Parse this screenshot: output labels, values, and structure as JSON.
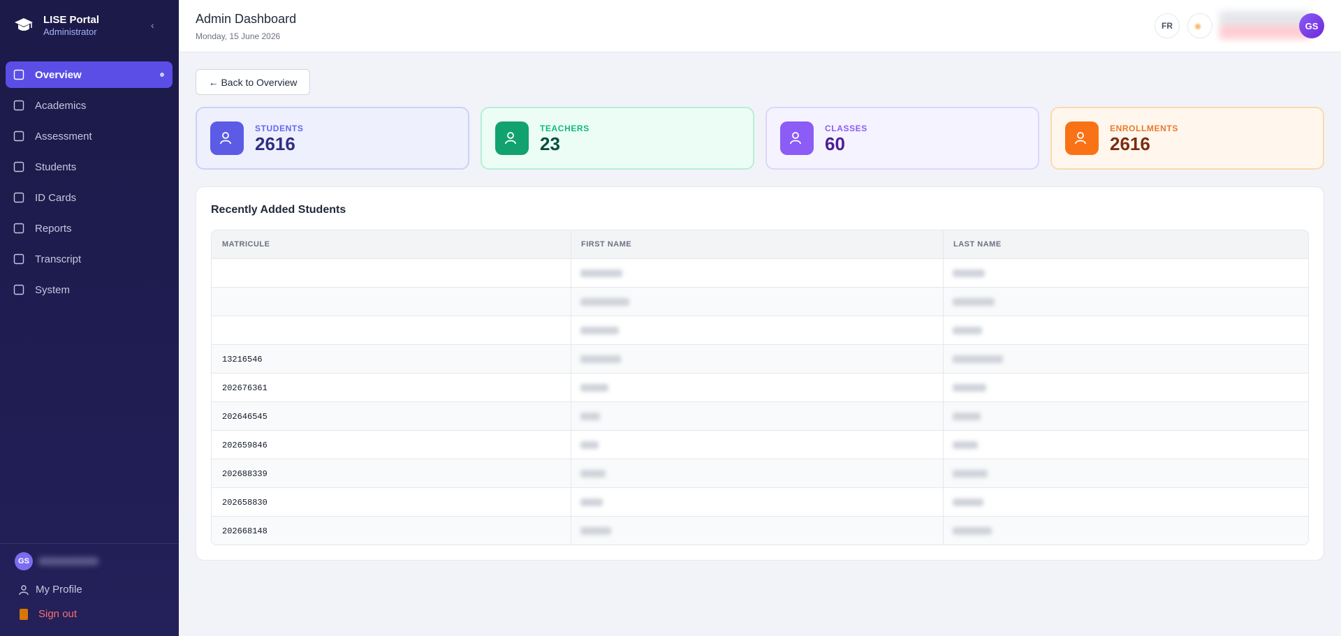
{
  "sidebar": {
    "brand": "LISE Portal",
    "role": "Administrator",
    "nav": [
      "Overview",
      "Academics",
      "Assessment",
      "Students",
      "ID Cards",
      "Reports",
      "Transcript",
      "System"
    ],
    "user_initials": "GS",
    "profile": "My Profile",
    "signout": "Sign out"
  },
  "header": {
    "title": "Admin Dashboard",
    "date": "Monday, 15 June 2026",
    "lang": "FR",
    "avatar": "GS"
  },
  "back": "← Back to Overview",
  "stats": [
    {
      "label": "STUDENTS",
      "value": 2616
    },
    {
      "label": "TEACHERS",
      "value": 23
    },
    {
      "label": "CLASSES",
      "value": 60
    },
    {
      "label": "ENROLLMENTS",
      "value": 2616
    }
  ],
  "table": {
    "title": "Recently Added Students",
    "columns": [
      "MATRICULE",
      "FIRST NAME",
      "LAST NAME"
    ],
    "matricules": [
      null,
      null,
      null,
      "13216546",
      "202676361",
      "202646545",
      "202659846",
      "202688339",
      "202658830",
      "202668148"
    ]
  }
}
